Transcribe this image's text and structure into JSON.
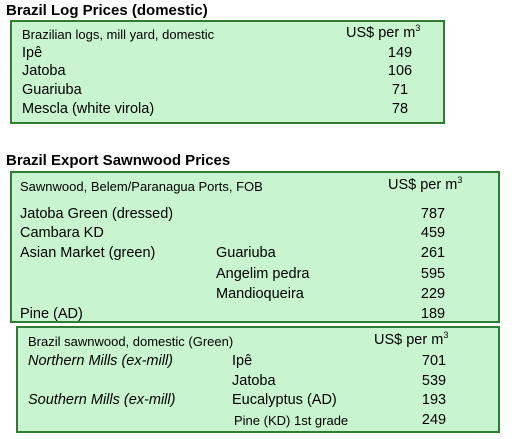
{
  "log_prices": {
    "title": "Brazil Log Prices (domestic)",
    "header_desc": "Brazilian logs, mill yard, domestic",
    "header_unit": "US$ per m",
    "header_unit_sup": "3",
    "rows": [
      {
        "name": "Ipê",
        "value": "149"
      },
      {
        "name": "Jatoba",
        "value": "106"
      },
      {
        "name": "Guariuba",
        "value": "71"
      },
      {
        "name": "Mescla (white virola)",
        "value": "78"
      }
    ]
  },
  "export_sawnwood": {
    "title": "Brazil Export Sawnwood Prices",
    "header_desc": "Sawnwood, Belem/Paranagua Ports, FOB",
    "header_unit": "US$ per m",
    "header_unit_sup": "3",
    "rows": [
      {
        "name": "Jatoba Green (dressed)",
        "sub": "",
        "value": "787"
      },
      {
        "name": "Cambara KD",
        "sub": "",
        "value": "459"
      },
      {
        "name": "Asian Market (green)",
        "sub": "Guariuba",
        "value": "261"
      },
      {
        "name": "",
        "sub": "Angelim pedra",
        "value": "595"
      },
      {
        "name": "",
        "sub": "Mandioqueira",
        "value": "229"
      },
      {
        "name": "Pine (AD)",
        "sub": "",
        "value": "189"
      }
    ]
  },
  "domestic_sawnwood": {
    "header_desc": "Brazil sawnwood, domestic (Green)",
    "header_unit": "US$ per m",
    "header_unit_sup": "3",
    "rows": [
      {
        "name": "Northern Mills (ex-mill)",
        "sub": "Ipê",
        "value": "701"
      },
      {
        "name": "",
        "sub": "Jatoba",
        "value": "539"
      },
      {
        "name": "Southern Mills (ex-mill)",
        "sub": "Eucalyptus (AD)",
        "value": "193"
      },
      {
        "name": "",
        "sub": "Pine (KD) 1st grade",
        "value": "249"
      }
    ]
  }
}
